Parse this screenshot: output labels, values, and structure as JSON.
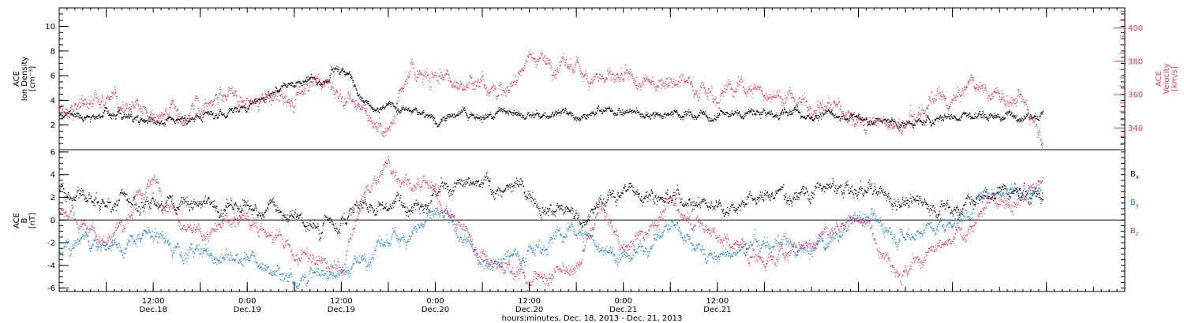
{
  "chart_data": [
    {
      "panel": "top",
      "type": "scatter",
      "ylabel_left": [
        "ACE",
        "Ion Density",
        "[cm⁻³]"
      ],
      "ylabel_right": [
        "ACE",
        "Velocity",
        "[km/s]"
      ],
      "left_axis": {
        "ylim": [
          0,
          11.5
        ],
        "ticks": [
          2,
          4,
          6,
          8,
          10
        ]
      },
      "right_axis": {
        "ylim": [
          327,
          412
        ],
        "ticks": [
          340,
          360,
          380,
          400
        ],
        "color": "#e8355e"
      },
      "series": [
        {
          "name_hidden": "density",
          "axis": "left",
          "color": "#000000",
          "points_hours": [
            0,
            6,
            9,
            12,
            18,
            21,
            24,
            27,
            30,
            33,
            36,
            39,
            42,
            45,
            48,
            54,
            60,
            66,
            72,
            78,
            84,
            90,
            96,
            102,
            108,
            114,
            120,
            126
          ],
          "values": [
            2.9,
            3.0,
            2.8,
            2.6,
            2.5,
            3.0,
            3.6,
            4.5,
            5.6,
            5.4,
            6.6,
            4.4,
            3.6,
            2.9,
            2.6,
            2.8,
            2.8,
            3.0,
            3.1,
            3.0,
            2.9,
            3.0,
            2.9,
            2.5,
            2.0,
            2.8,
            2.8,
            2.9
          ]
        },
        {
          "name_hidden": "velocity",
          "axis": "right",
          "color": "#e8355e",
          "points_hours": [
            0,
            3,
            6,
            9,
            12,
            15,
            18,
            21,
            24,
            27,
            30,
            33,
            36,
            39,
            42,
            45,
            48,
            51,
            54,
            57,
            60,
            63,
            66,
            69,
            72,
            75,
            78,
            81,
            84,
            87,
            90,
            93,
            96,
            99,
            102,
            105,
            108,
            111,
            114,
            117,
            120,
            123,
            126
          ],
          "values": [
            350,
            355,
            358,
            352,
            350,
            352,
            348,
            360,
            355,
            358,
            352,
            368,
            362,
            350,
            338,
            372,
            370,
            366,
            370,
            360,
            385,
            378,
            375,
            372,
            366,
            366,
            372,
            368,
            360,
            365,
            362,
            358,
            355,
            352,
            345,
            342,
            340,
            355,
            355,
            368,
            358,
            356,
            338
          ]
        }
      ]
    },
    {
      "panel": "bottom",
      "type": "scatter",
      "ylabel_left": [
        "ACE",
        "B",
        "[nT]"
      ],
      "left_axis": {
        "ylim": [
          -6.3,
          6.2
        ],
        "ticks": [
          -6,
          -4,
          -2,
          0,
          2,
          4,
          6
        ]
      },
      "zero_line": true,
      "series": [
        {
          "name": "Bx",
          "label": "B",
          "sub": "x",
          "color": "#000000",
          "points_hours": [
            0,
            6,
            12,
            18,
            24,
            30,
            33,
            36,
            42,
            48,
            54,
            60,
            66,
            72,
            78,
            84,
            90,
            96,
            102,
            108,
            114,
            120,
            126
          ],
          "values": [
            2.5,
            1.5,
            2.0,
            1.0,
            1.5,
            0.3,
            -0.3,
            0.5,
            1.5,
            2.5,
            3.0,
            2.5,
            0.0,
            2.8,
            2.2,
            1.5,
            2.0,
            2.8,
            2.5,
            1.8,
            1.0,
            2.5,
            2.0
          ]
        },
        {
          "name": "By",
          "label": "B",
          "sub": "y",
          "color": "#1a82dc",
          "points_hours": [
            0,
            6,
            12,
            18,
            24,
            30,
            36,
            42,
            48,
            54,
            60,
            66,
            72,
            78,
            84,
            90,
            96,
            102,
            108,
            114,
            120,
            126
          ],
          "values": [
            -2.5,
            -2.0,
            -1.5,
            -3.0,
            -3.5,
            -5.0,
            -4.5,
            -2.0,
            0.5,
            -3.5,
            -2.5,
            -0.8,
            -3.5,
            -0.5,
            -3.5,
            -2.0,
            -3.0,
            0.5,
            -1.0,
            0.0,
            3.0,
            2.5
          ]
        },
        {
          "name": "Bz",
          "label": "B",
          "sub": "z",
          "color": "#e8355e",
          "points_hours": [
            0,
            6,
            12,
            18,
            24,
            30,
            36,
            39,
            42,
            48,
            54,
            60,
            66,
            69,
            72,
            78,
            84,
            90,
            96,
            102,
            108,
            114,
            120,
            126
          ],
          "values": [
            1.0,
            -2.0,
            3.5,
            -1.5,
            0.5,
            -3.0,
            -4.5,
            2.5,
            5.0,
            2.0,
            -3.0,
            -5.0,
            -4.5,
            1.0,
            -2.5,
            1.5,
            -1.5,
            -3.5,
            -2.0,
            0.5,
            -4.5,
            -2.0,
            2.0,
            3.0
          ]
        }
      ]
    }
  ],
  "x_axis": {
    "xlim_hours": [
      0,
      136
    ],
    "tick_hours": [
      6,
      18,
      30,
      42,
      54,
      66,
      78,
      90,
      102,
      114,
      126
    ],
    "tick_labels": [
      [
        "12:00",
        "Dec.18"
      ],
      [
        "0:00",
        "Dec.19"
      ],
      [
        "12:00",
        "Dec.19"
      ],
      [
        "0:00",
        "Dec.20"
      ],
      [
        "12:00",
        "Dec.20"
      ],
      [
        "0:00",
        "Dec.21"
      ],
      [
        "12:00",
        "Dec.21"
      ]
    ],
    "label_tick_hours": [
      12,
      24,
      36,
      48,
      60,
      72,
      84
    ],
    "title": "hours:minutes, Dec. 18, 2013 - Dec. 21, 2013",
    "data_end_hours": 125.5
  }
}
